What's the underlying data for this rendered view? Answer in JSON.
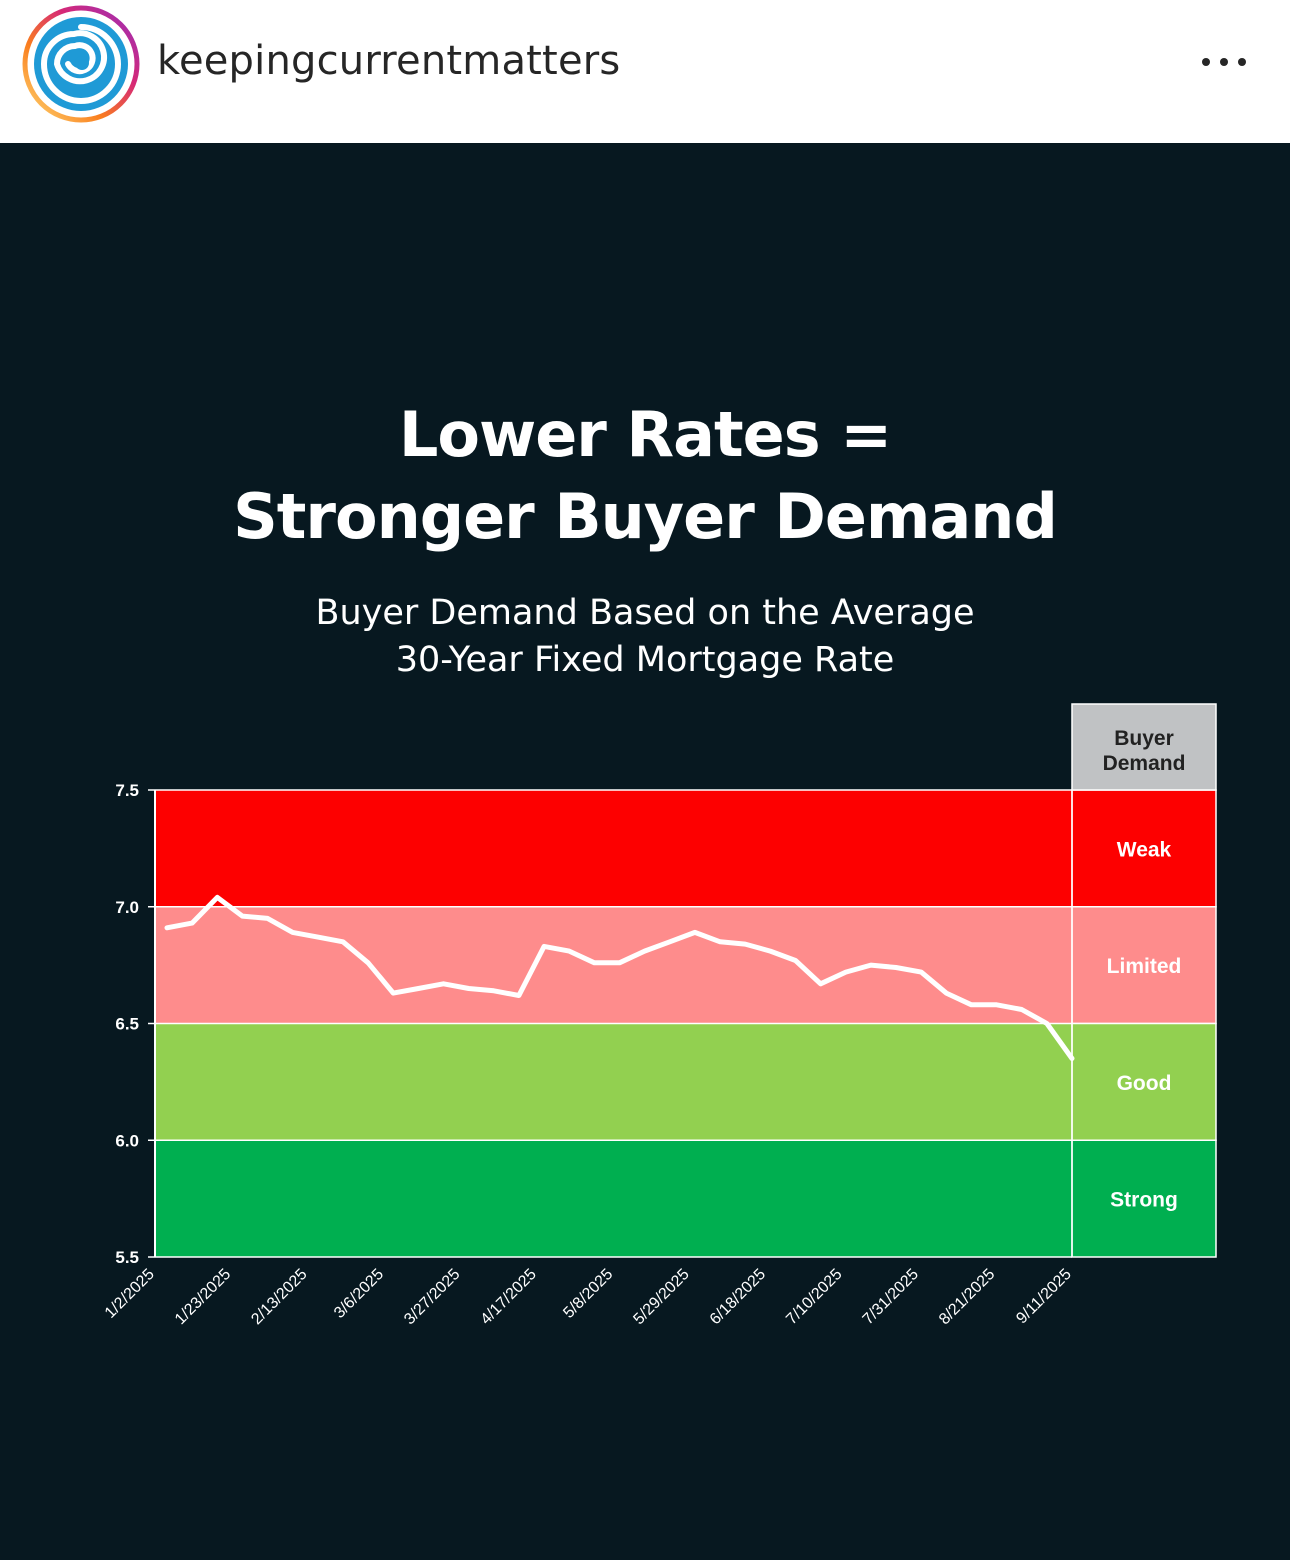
{
  "header": {
    "username": "keepingcurrentmatters",
    "more_label": "More options"
  },
  "colors": {
    "weak": "#fd0000",
    "limited": "#fe8c8c",
    "good": "#92d050",
    "strong": "#00af50",
    "legend_header": "#c0c2c4",
    "background": "#071820"
  },
  "chart_data": {
    "type": "line",
    "title_line1": "Lower Rates =",
    "title_line2": "Stronger Buyer Demand",
    "subtitle_line1": "Buyer Demand Based on the Average",
    "subtitle_line2": "30-Year Fixed Mortgage Rate",
    "ylim": [
      5.5,
      7.5
    ],
    "yticks": [
      "7.5",
      "7.0",
      "6.5",
      "6.0",
      "5.5"
    ],
    "xtick_labels": [
      "1/2/2025",
      "1/23/2025",
      "2/13/2025",
      "3/6/2025",
      "3/27/2025",
      "4/17/2025",
      "5/8/2025",
      "5/29/2025",
      "6/18/2025",
      "7/10/2025",
      "7/31/2025",
      "8/21/2025",
      "9/11/2025"
    ],
    "series": [
      {
        "name": "30-Year Fixed Mortgage Rate",
        "values": [
          6.91,
          6.93,
          7.04,
          6.96,
          6.95,
          6.89,
          6.87,
          6.85,
          6.76,
          6.63,
          6.65,
          6.67,
          6.65,
          6.64,
          6.62,
          6.83,
          6.81,
          6.76,
          6.76,
          6.81,
          6.85,
          6.89,
          6.85,
          6.84,
          6.81,
          6.77,
          6.67,
          6.72,
          6.75,
          6.74,
          6.72,
          6.63,
          6.58,
          6.58,
          6.56,
          6.5,
          6.35
        ]
      }
    ],
    "zones": [
      {
        "label": "Weak",
        "from": 7.0,
        "to": 7.5
      },
      {
        "label": "Limited",
        "from": 6.5,
        "to": 7.0
      },
      {
        "label": "Good",
        "from": 6.0,
        "to": 6.5
      },
      {
        "label": "Strong",
        "from": 5.5,
        "to": 6.0
      }
    ],
    "legend_header_line1": "Buyer",
    "legend_header_line2": "Demand"
  }
}
